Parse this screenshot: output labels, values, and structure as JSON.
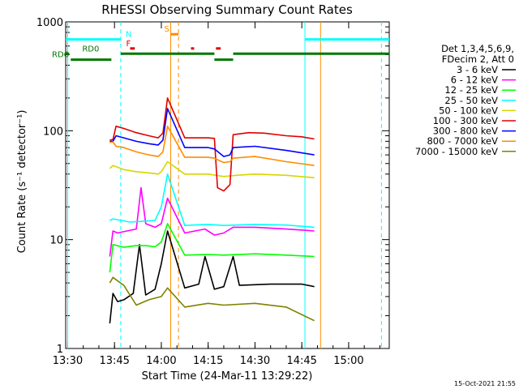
{
  "chart_data": {
    "type": "line",
    "title": "RHESSI Observing Summary Count Rates",
    "xlabel": "Start Time (24-Mar-11 13:29:22)",
    "ylabel": "Count Rate (s⁻¹ detector⁻¹)",
    "yscale": "log",
    "xlim": [
      "13:29:22",
      "15:13:00"
    ],
    "ylim": [
      1,
      1000
    ],
    "x_ticks": [
      "13:30",
      "13:45",
      "14:00",
      "14:15",
      "14:30",
      "14:45",
      "15:00"
    ],
    "y_ticks": [
      "1",
      "10",
      "100",
      "1000"
    ],
    "timestamp": "15-Oct-2021 21:55",
    "legend_header": [
      "Det 1,3,4,5,6,9,",
      "FDecim 2, Att 0"
    ],
    "legend_placement": "right",
    "series": [
      {
        "name": "3 - 6 keV",
        "color": "#000000",
        "points": [
          [
            "13:43:30",
            1.7
          ],
          [
            "13:44:30",
            3.2
          ],
          [
            "13:46:00",
            2.7
          ],
          [
            "13:48:00",
            2.8
          ],
          [
            "13:51:00",
            3.2
          ],
          [
            "13:53:00",
            9
          ],
          [
            "13:55:00",
            3.1
          ],
          [
            "13:58:00",
            3.5
          ],
          [
            "14:00:00",
            6
          ],
          [
            "14:02:00",
            12
          ],
          [
            "14:07:30",
            3.6
          ],
          [
            "14:12:00",
            3.9
          ],
          [
            "14:14:00",
            7
          ],
          [
            "14:17:00",
            3.5
          ],
          [
            "14:20:00",
            3.7
          ],
          [
            "14:23:00",
            7
          ],
          [
            "14:25:00",
            3.8
          ],
          [
            "14:35:00",
            3.9
          ],
          [
            "14:45:00",
            3.9
          ],
          [
            "14:49:00",
            3.7
          ]
        ]
      },
      {
        "name": "6 - 12 keV",
        "color": "#ff00ff",
        "points": [
          [
            "13:43:30",
            7
          ],
          [
            "13:44:30",
            12
          ],
          [
            "13:46:00",
            11.5
          ],
          [
            "13:49:00",
            12
          ],
          [
            "13:52:00",
            12.5
          ],
          [
            "13:53:30",
            30
          ],
          [
            "13:55:00",
            14
          ],
          [
            "13:58:00",
            13
          ],
          [
            "14:00:00",
            14
          ],
          [
            "14:02:00",
            24
          ],
          [
            "14:07:30",
            11.5
          ],
          [
            "14:14:00",
            12.5
          ],
          [
            "14:17:00",
            11
          ],
          [
            "14:20:00",
            11.5
          ],
          [
            "14:23:00",
            13
          ],
          [
            "14:30:00",
            13
          ],
          [
            "14:40:00",
            12.5
          ],
          [
            "14:49:00",
            12
          ]
        ]
      },
      {
        "name": "12 - 25 keV",
        "color": "#00ff00",
        "points": [
          [
            "13:43:30",
            5
          ],
          [
            "13:44:30",
            9
          ],
          [
            "13:48:00",
            8.5
          ],
          [
            "13:52:00",
            8.8
          ],
          [
            "13:55:00",
            8.8
          ],
          [
            "13:58:00",
            8.6
          ],
          [
            "14:00:00",
            9.5
          ],
          [
            "14:02:00",
            14
          ],
          [
            "14:07:30",
            7.2
          ],
          [
            "14:15:00",
            7.3
          ],
          [
            "14:20:00",
            7.2
          ],
          [
            "14:30:00",
            7.4
          ],
          [
            "14:40:00",
            7.2
          ],
          [
            "14:49:00",
            7
          ]
        ]
      },
      {
        "name": "25 - 50 keV",
        "color": "#00ffff",
        "points": [
          [
            "13:43:30",
            15
          ],
          [
            "13:44:30",
            15.5
          ],
          [
            "13:50:00",
            14.5
          ],
          [
            "13:55:00",
            14.8
          ],
          [
            "13:58:00",
            15
          ],
          [
            "14:00:00",
            20
          ],
          [
            "14:02:00",
            40
          ],
          [
            "14:07:30",
            13.5
          ],
          [
            "14:15:00",
            13.8
          ],
          [
            "14:20:00",
            13.5
          ],
          [
            "14:30:00",
            13.8
          ],
          [
            "14:40:00",
            13.6
          ],
          [
            "14:49:00",
            13
          ]
        ]
      },
      {
        "name": "50 - 100 keV",
        "color": "#d6d600",
        "points": [
          [
            "13:43:30",
            45
          ],
          [
            "13:44:30",
            48
          ],
          [
            "13:48:00",
            44
          ],
          [
            "13:52:00",
            42
          ],
          [
            "13:56:00",
            41
          ],
          [
            "13:59:00",
            40
          ],
          [
            "14:00:00",
            42
          ],
          [
            "14:02:00",
            52
          ],
          [
            "14:07:30",
            40
          ],
          [
            "14:15:00",
            40
          ],
          [
            "14:20:00",
            38
          ],
          [
            "14:24:00",
            39
          ],
          [
            "14:30:00",
            40
          ],
          [
            "14:40:00",
            39
          ],
          [
            "14:49:00",
            37
          ]
        ]
      },
      {
        "name": "100 - 300 keV",
        "color": "#e00000",
        "points": [
          [
            "13:43:30",
            82
          ],
          [
            "13:44:30",
            83
          ],
          [
            "13:45:30",
            110
          ],
          [
            "13:48:00",
            105
          ],
          [
            "13:52:00",
            96
          ],
          [
            "13:56:00",
            90
          ],
          [
            "13:59:00",
            86
          ],
          [
            "14:00:30",
            95
          ],
          [
            "14:02:00",
            200
          ],
          [
            "14:07:30",
            86
          ],
          [
            "14:15:00",
            86
          ],
          [
            "14:17:00",
            85
          ],
          [
            "14:18:00",
            30
          ],
          [
            "14:20:00",
            28
          ],
          [
            "14:22:00",
            32
          ],
          [
            "14:23:00",
            92
          ],
          [
            "14:28:00",
            96
          ],
          [
            "14:33:00",
            95
          ],
          [
            "14:40:00",
            90
          ],
          [
            "14:45:00",
            88
          ],
          [
            "14:49:00",
            84
          ]
        ]
      },
      {
        "name": "300 - 800 keV",
        "color": "#0000ff",
        "points": [
          [
            "13:43:30",
            80
          ],
          [
            "13:44:30",
            80
          ],
          [
            "13:45:30",
            90
          ],
          [
            "13:48:00",
            86
          ],
          [
            "13:52:00",
            80
          ],
          [
            "13:56:00",
            76
          ],
          [
            "13:59:00",
            74
          ],
          [
            "14:00:30",
            82
          ],
          [
            "14:02:00",
            160
          ],
          [
            "14:07:30",
            70
          ],
          [
            "14:15:00",
            70
          ],
          [
            "14:17:00",
            68
          ],
          [
            "14:20:00",
            58
          ],
          [
            "14:22:00",
            60
          ],
          [
            "14:23:00",
            70
          ],
          [
            "14:30:00",
            72
          ],
          [
            "14:40:00",
            66
          ],
          [
            "14:49:00",
            60
          ]
        ]
      },
      {
        "name": "800 - 7000 keV",
        "color": "#ff8c00",
        "points": [
          [
            "13:43:30",
            78
          ],
          [
            "13:44:30",
            79
          ],
          [
            "13:45:30",
            72
          ],
          [
            "13:48:00",
            70
          ],
          [
            "13:52:00",
            64
          ],
          [
            "13:56:00",
            60
          ],
          [
            "13:59:00",
            58
          ],
          [
            "14:00:30",
            64
          ],
          [
            "14:02:00",
            110
          ],
          [
            "14:07:30",
            57
          ],
          [
            "14:15:00",
            57
          ],
          [
            "14:17:00",
            56
          ],
          [
            "14:20:00",
            51
          ],
          [
            "14:22:00",
            52
          ],
          [
            "14:23:00",
            56
          ],
          [
            "14:30:00",
            58
          ],
          [
            "14:40:00",
            52
          ],
          [
            "14:49:00",
            48
          ]
        ]
      },
      {
        "name": "7000 - 15000 keV",
        "color": "#808000",
        "points": [
          [
            "13:43:30",
            4
          ],
          [
            "13:44:30",
            4.5
          ],
          [
            "13:48:00",
            3.8
          ],
          [
            "13:52:00",
            2.5
          ],
          [
            "13:56:00",
            2.8
          ],
          [
            "14:00:00",
            3
          ],
          [
            "14:02:00",
            3.6
          ],
          [
            "14:07:30",
            2.4
          ],
          [
            "14:15:00",
            2.6
          ],
          [
            "14:20:00",
            2.5
          ],
          [
            "14:30:00",
            2.6
          ],
          [
            "14:40:00",
            2.4
          ],
          [
            "14:49:00",
            1.8
          ]
        ]
      }
    ],
    "night_vertical_lines": {
      "color": "#00ffff",
      "solid": [
        "13:30:00",
        "14:46:00"
      ],
      "dashed": [
        "13:47:00",
        "15:10:30"
      ]
    },
    "saa_vertical_lines": {
      "color": "#ff8c00",
      "solid": [
        "14:03:00",
        "14:51:00"
      ],
      "dashed": [
        "14:05:30"
      ]
    },
    "flag_bars": [
      {
        "label": "N",
        "color": "#00ffff",
        "y_label": 690,
        "segments": [
          [
            "13:29:22",
            "13:47:00"
          ],
          [
            "14:46:00",
            "15:13:00"
          ]
        ]
      },
      {
        "label": "S",
        "color": "#ff8c00",
        "y_label": 770,
        "segments": [
          [
            "14:03:00",
            "14:05:30"
          ]
        ]
      },
      {
        "label": "F",
        "color": "#e00000",
        "y_label": 570,
        "segments": [
          [
            "13:50:00",
            "13:51:30"
          ],
          [
            "14:09:30",
            "14:10:30"
          ],
          [
            "14:17:30",
            "14:19:00"
          ]
        ]
      },
      {
        "label": "RD0",
        "color": "#007700",
        "y_label": 510,
        "segments": [
          [
            "13:29:22",
            "13:30:30"
          ],
          [
            "13:47:00",
            "14:17:00"
          ],
          [
            "14:23:00",
            "15:13:00"
          ]
        ]
      },
      {
        "label": "RD6",
        "color": "#007700",
        "y_label": 450,
        "segments": [
          [
            "13:31:00",
            "13:44:00"
          ],
          [
            "14:17:00",
            "14:23:00"
          ]
        ]
      }
    ]
  }
}
